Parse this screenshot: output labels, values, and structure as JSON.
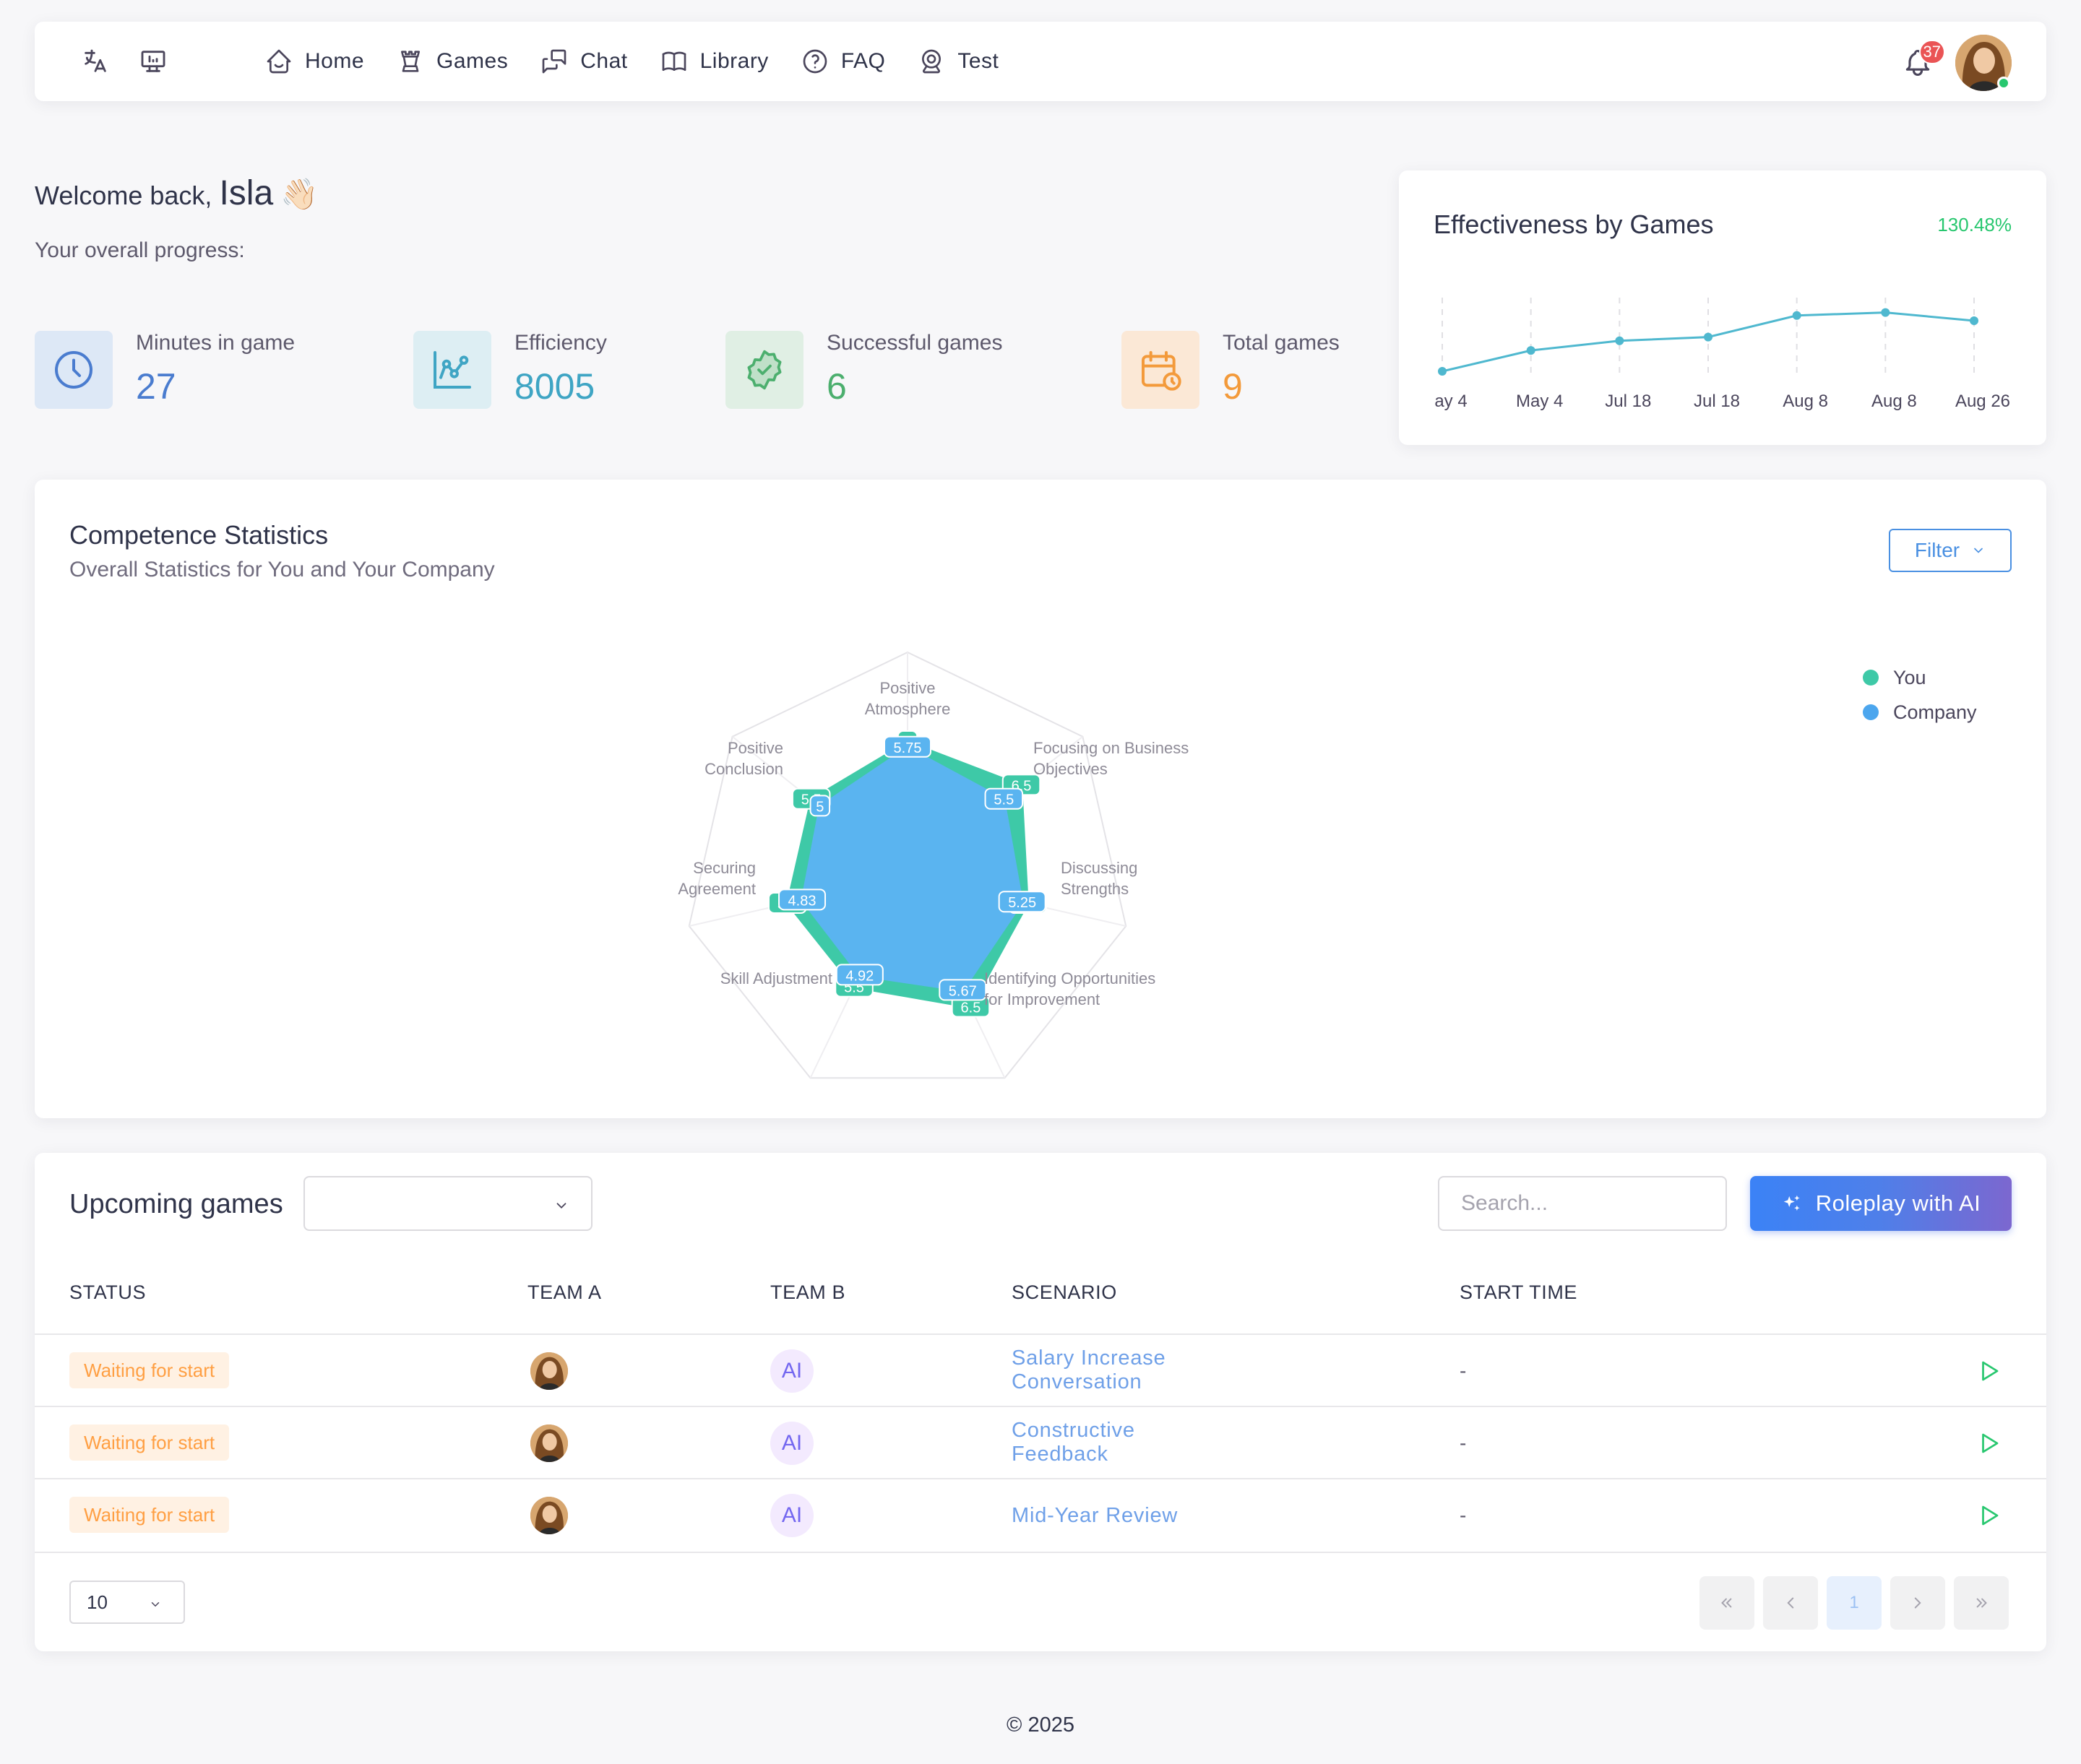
{
  "nav": {
    "links": [
      {
        "label": "Home",
        "icon": "home-icon"
      },
      {
        "label": "Games",
        "icon": "chess-rook-icon"
      },
      {
        "label": "Chat",
        "icon": "chat-icon"
      },
      {
        "label": "Library",
        "icon": "book-icon"
      },
      {
        "label": "FAQ",
        "icon": "help-circle-icon"
      },
      {
        "label": "Test",
        "icon": "webcam-icon"
      }
    ],
    "notification_count": "37"
  },
  "welcome": {
    "prefix": "Welcome back,",
    "name": "Isla",
    "emoji": "👋🏻",
    "progress_label": "Your overall progress:"
  },
  "stats": [
    {
      "label": "Minutes in game",
      "value": "27",
      "icon": "clock-icon",
      "color": "#4a7ccf",
      "bg": "#dde8f6"
    },
    {
      "label": "Efficiency",
      "value": "8005",
      "icon": "chart-nodes-icon",
      "color": "#3fa5c4",
      "bg": "#ddeef3"
    },
    {
      "label": "Successful games",
      "value": "6",
      "icon": "badge-check-icon",
      "color": "#4caf6e",
      "bg": "#e0efe4"
    },
    {
      "label": "Total games",
      "value": "9",
      "icon": "calendar-clock-icon",
      "color": "#f39a3b",
      "bg": "#fbe8d6"
    }
  ],
  "effectiveness": {
    "title": "Effectiveness by Games",
    "change": "130.48%"
  },
  "competence": {
    "title": "Competence Statistics",
    "subtitle": "Overall Statistics for You and Your Company",
    "filter_label": "Filter",
    "legend": [
      {
        "name": "You",
        "color": "#3ec9a7"
      },
      {
        "name": "Company",
        "color": "#4ca6ee"
      }
    ]
  },
  "upcoming": {
    "title": "Upcoming games",
    "search_placeholder": "Search...",
    "roleplay_label": "Roleplay with AI",
    "columns": [
      "STATUS",
      "TEAM A",
      "TEAM B",
      "SCENARIO",
      "START TIME"
    ],
    "rows": [
      {
        "status": "Waiting for start",
        "team_b": "AI",
        "scenario": [
          "Salary Increase",
          "Conversation"
        ],
        "start_time": "-"
      },
      {
        "status": "Waiting for start",
        "team_b": "AI",
        "scenario": [
          "Constructive",
          "Feedback"
        ],
        "start_time": "-"
      },
      {
        "status": "Waiting for start",
        "team_b": "AI",
        "scenario": [
          "Mid-Year Review"
        ],
        "start_time": "-"
      }
    ],
    "page_size": "10",
    "current_page": "1"
  },
  "footer": "© 2025",
  "chart_data": [
    {
      "type": "line",
      "title": "Effectiveness by Games",
      "x": [
        "ay 4",
        "May 4",
        "Jul 18",
        "Jul 18",
        "Aug 8",
        "Aug 8",
        "Aug 26"
      ],
      "series": [
        {
          "values": [
            0,
            28,
            41,
            46,
            75,
            79,
            68
          ]
        }
      ],
      "ylim": [
        0,
        100
      ],
      "grid": "vertical dashed",
      "color": "#4fb8cf"
    },
    {
      "type": "radar",
      "title": "Competence Statistics",
      "categories": [
        [
          "Positive",
          "Atmosphere"
        ],
        [
          "Focusing on Business",
          "Objectives"
        ],
        [
          "Discussing",
          "Strengths"
        ],
        [
          "Identifying Opportunities",
          "for Improvement"
        ],
        [
          "Skill Adjustment"
        ],
        [
          "Securing",
          "Agreement"
        ],
        [
          "Positive",
          "Conclusion"
        ]
      ],
      "rlim": [
        0,
        10
      ],
      "series": [
        {
          "name": "You",
          "values": [
            6,
            6.5,
            5.5,
            6.5,
            5.5,
            5.5,
            5.5
          ],
          "labels": [
            "6",
            "6.5",
            "5.5",
            "6.5",
            "5.5",
            "5.5",
            "5.5"
          ]
        },
        {
          "name": "Company",
          "values": [
            5.75,
            5.5,
            5.25,
            5.67,
            4.92,
            4.83,
            5
          ],
          "labels": [
            "5.75",
            "5.5",
            "5.25",
            "5.67",
            "4.92",
            "4.83",
            "5"
          ]
        }
      ],
      "legend": "right"
    }
  ]
}
